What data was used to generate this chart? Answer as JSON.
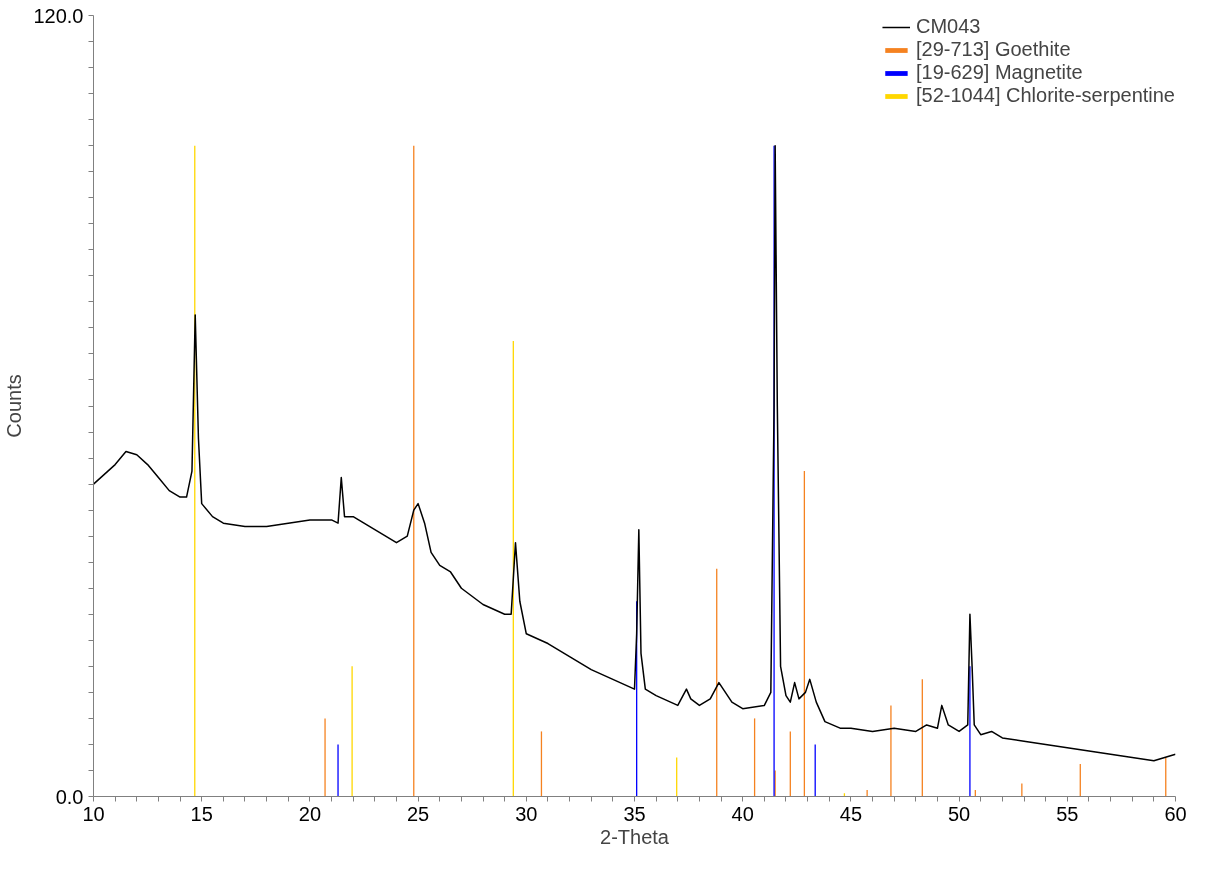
{
  "chart_data": {
    "type": "line",
    "xlabel": "2-Theta",
    "ylabel": "Counts",
    "xlim": [
      10,
      60
    ],
    "ylim": [
      0,
      120
    ],
    "xticks": [
      10,
      {
        "value": 11,
        "label": null
      },
      {
        "value": 12,
        "label": null
      },
      {
        "value": 13,
        "label": null
      },
      {
        "value": 14,
        "label": null
      },
      15,
      {
        "value": 16,
        "label": null
      },
      {
        "value": 17,
        "label": null
      },
      {
        "value": 18,
        "label": null
      },
      {
        "value": 19,
        "label": null
      },
      20,
      {
        "value": 21,
        "label": null
      },
      {
        "value": 22,
        "label": null
      },
      {
        "value": 23,
        "label": null
      },
      {
        "value": 24,
        "label": null
      },
      25,
      {
        "value": 26,
        "label": null
      },
      {
        "value": 27,
        "label": null
      },
      {
        "value": 28,
        "label": null
      },
      {
        "value": 29,
        "label": null
      },
      30,
      {
        "value": 31,
        "label": null
      },
      {
        "value": 32,
        "label": null
      },
      {
        "value": 33,
        "label": null
      },
      {
        "value": 34,
        "label": null
      },
      35,
      {
        "value": 36,
        "label": null
      },
      {
        "value": 37,
        "label": null
      },
      {
        "value": 38,
        "label": null
      },
      {
        "value": 39,
        "label": null
      },
      40,
      {
        "value": 41,
        "label": null
      },
      {
        "value": 42,
        "label": null
      },
      {
        "value": 43,
        "label": null
      },
      {
        "value": 44,
        "label": null
      },
      45,
      {
        "value": 46,
        "label": null
      },
      {
        "value": 47,
        "label": null
      },
      {
        "value": 48,
        "label": null
      },
      {
        "value": 49,
        "label": null
      },
      50,
      {
        "value": 51,
        "label": null
      },
      {
        "value": 52,
        "label": null
      },
      {
        "value": 53,
        "label": null
      },
      {
        "value": 54,
        "label": null
      },
      55,
      {
        "value": 56,
        "label": null
      },
      {
        "value": 57,
        "label": null
      },
      {
        "value": 58,
        "label": null
      },
      {
        "value": 59,
        "label": null
      },
      60
    ],
    "yticks": [
      {
        "value": 0,
        "label": "0.0"
      },
      {
        "value": 4,
        "label": null
      },
      {
        "value": 8,
        "label": null
      },
      {
        "value": 12,
        "label": null
      },
      {
        "value": 16,
        "label": null
      },
      {
        "value": 20,
        "label": null
      },
      {
        "value": 24,
        "label": null
      },
      {
        "value": 28,
        "label": null
      },
      {
        "value": 32,
        "label": null
      },
      {
        "value": 36,
        "label": null
      },
      {
        "value": 40,
        "label": null
      },
      {
        "value": 44,
        "label": null
      },
      {
        "value": 48,
        "label": null
      },
      {
        "value": 52,
        "label": null
      },
      {
        "value": 56,
        "label": null
      },
      {
        "value": 60,
        "label": null
      },
      {
        "value": 64,
        "label": null
      },
      {
        "value": 68,
        "label": null
      },
      {
        "value": 72,
        "label": null
      },
      {
        "value": 76,
        "label": null
      },
      {
        "value": 80,
        "label": null
      },
      {
        "value": 84,
        "label": null
      },
      {
        "value": 88,
        "label": null
      },
      {
        "value": 92,
        "label": null
      },
      {
        "value": 96,
        "label": null
      },
      {
        "value": 100,
        "label": null
      },
      {
        "value": 104,
        "label": null
      },
      {
        "value": 108,
        "label": null
      },
      {
        "value": 112,
        "label": null
      },
      {
        "value": 116,
        "label": null
      },
      {
        "value": 120,
        "label": "120.0"
      }
    ],
    "grid": false,
    "legend": "top right",
    "marker": "none",
    "line_style": "solid",
    "series": [
      {
        "name": "CM043",
        "color": "#000000",
        "x": [
          10,
          11,
          11.5,
          12,
          12.5,
          13,
          13.5,
          14,
          14.3,
          14.55,
          14.7,
          14.85,
          15.0,
          15.5,
          16,
          17,
          18,
          19,
          20,
          21,
          21.3,
          21.45,
          21.6,
          22,
          23,
          24,
          24.5,
          24.8,
          25.0,
          25.3,
          25.6,
          26,
          26.5,
          27,
          28,
          29,
          29.3,
          29.5,
          29.7,
          30,
          31,
          32,
          33,
          34,
          35,
          35.1,
          35.2,
          35.3,
          35.5,
          36,
          37,
          37.4,
          37.6,
          38,
          38.5,
          38.9,
          39.5,
          40,
          41,
          41.3,
          41.45,
          41.5,
          41.6,
          41.75,
          42,
          42.2,
          42.4,
          42.6,
          42.9,
          43.1,
          43.4,
          43.8,
          44.5,
          45,
          46,
          47,
          48,
          48.5,
          49.0,
          49.2,
          49.5,
          50,
          50.4,
          50.5,
          50.6,
          50.7,
          51,
          51.5,
          52,
          53,
          54,
          55,
          56,
          57,
          58,
          59,
          60
        ],
        "values": [
          48,
          51,
          53,
          52.5,
          51,
          49,
          47,
          46,
          46,
          50,
          74,
          55,
          45,
          43,
          42,
          41.5,
          41.5,
          42,
          42.5,
          42.5,
          42,
          49,
          43,
          43,
          41,
          39,
          40,
          44,
          45,
          42,
          37.5,
          35.5,
          34.5,
          32,
          29.5,
          28,
          28,
          39,
          30,
          25,
          23.5,
          21.5,
          19.5,
          18,
          16.5,
          25,
          41,
          22,
          16.5,
          15.5,
          14,
          16.5,
          15,
          14,
          15,
          17.5,
          14.5,
          13.5,
          14,
          16,
          60,
          100,
          60,
          20,
          15.5,
          14.5,
          17.5,
          15,
          16,
          18,
          14.5,
          11.5,
          10.5,
          10.5,
          10,
          10.5,
          10,
          11,
          10.5,
          14,
          11,
          10,
          11,
          28,
          20,
          11,
          9.5,
          10,
          9,
          8.5,
          8,
          7.5,
          7,
          6.5,
          6,
          5.5,
          6.5
        ]
      },
      {
        "name": "[29-713] Goethite",
        "type": "bar",
        "color": "#f58220",
        "x": [
          20.7,
          24.8,
          30.7,
          38.8,
          40.55,
          41.5,
          42.2,
          42.85,
          45.75,
          46.85,
          48.3,
          50.75,
          52.9,
          55.6,
          59.55
        ],
        "values": [
          12,
          100,
          10,
          35,
          12,
          4,
          10,
          50,
          1,
          14,
          18,
          1,
          2,
          5,
          6
        ]
      },
      {
        "name": "[19-629] Magnetite",
        "type": "bar",
        "color": "#0000ff",
        "x": [
          21.3,
          35.1,
          41.45,
          43.35,
          50.5
        ],
        "values": [
          8,
          30,
          100,
          8,
          20
        ]
      },
      {
        "name": "[52-1044] Chlorite-serpentine",
        "type": "bar",
        "color": "#ffd700",
        "x": [
          14.68,
          21.95,
          29.4,
          36.95,
          44.7
        ],
        "values": [
          100,
          20,
          70,
          6,
          0.5
        ]
      }
    ]
  }
}
